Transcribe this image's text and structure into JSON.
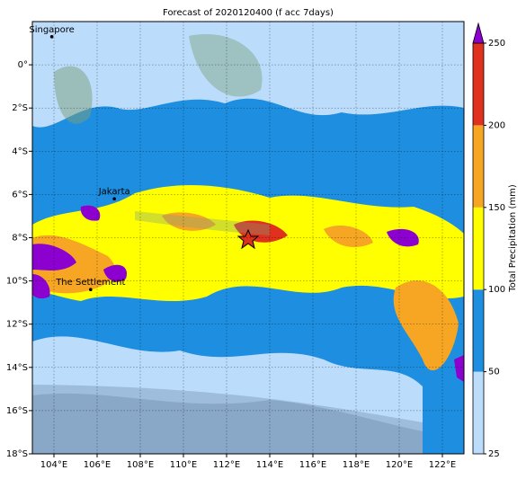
{
  "map": {
    "title": "Forecast of 2020120400 (f acc 7days)",
    "lon_range": [
      103,
      123
    ],
    "lat_range": [
      -18,
      2
    ],
    "lon_ticks": [
      {
        "value": 104,
        "label": "104°E"
      },
      {
        "value": 106,
        "label": "106°E"
      },
      {
        "value": 108,
        "label": "108°E"
      },
      {
        "value": 110,
        "label": "110°E"
      },
      {
        "value": 112,
        "label": "112°E"
      },
      {
        "value": 114,
        "label": "114°E"
      },
      {
        "value": 116,
        "label": "116°E"
      },
      {
        "value": 118,
        "label": "118°E"
      },
      {
        "value": 120,
        "label": "120°E"
      },
      {
        "value": 122,
        "label": "122°E"
      }
    ],
    "lat_ticks": [
      {
        "value": 0,
        "label": "0°"
      },
      {
        "value": -2,
        "label": "2°S"
      },
      {
        "value": -4,
        "label": "4°S"
      },
      {
        "value": -6,
        "label": "6°S"
      },
      {
        "value": -8,
        "label": "8°S"
      },
      {
        "value": -10,
        "label": "10°S"
      },
      {
        "value": -12,
        "label": "12°S"
      },
      {
        "value": -14,
        "label": "14°S"
      },
      {
        "value": -16,
        "label": "16°S"
      },
      {
        "value": -18,
        "label": "18°S"
      }
    ],
    "places": [
      {
        "name": "Singapore",
        "lon": 103.9,
        "lat": 1.3
      },
      {
        "name": "Jakarta",
        "lon": 106.8,
        "lat": -6.2
      },
      {
        "name": "The Settlement",
        "lon": 105.7,
        "lat": -10.4
      }
    ],
    "colorbar": {
      "label": "Total Precipitation (mm)",
      "ticks": [
        25,
        50,
        100,
        150,
        200,
        250
      ],
      "colors": [
        "#bcdcfc",
        "#1e8fe0",
        "#ffff00",
        "#f7a623",
        "#e0301e"
      ],
      "extend_color": "#8c00d0"
    }
  }
}
